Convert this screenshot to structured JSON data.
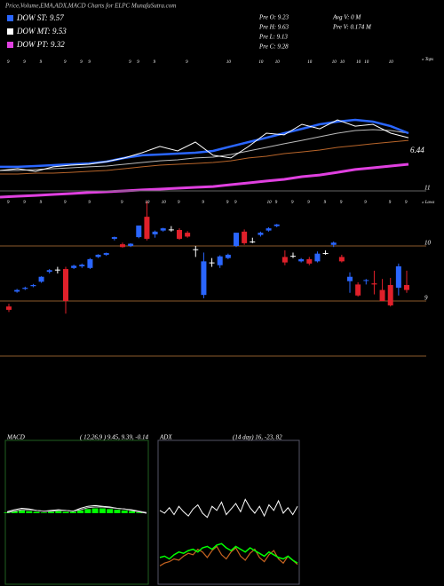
{
  "header": {
    "title": "Price,Volume,EMA,ADX,MACD Charts for ELPC MunafaSutra.com",
    "legend": [
      {
        "label": "DOW ST: 9.57",
        "color": "#2a66ff"
      },
      {
        "label": "DOW MT: 9.53",
        "color": "#ffffff"
      },
      {
        "label": "DOW PT: 9.32",
        "color": "#e040e0"
      }
    ],
    "stats": [
      "Pre  O: 9.23",
      "Pre  H: 9.63",
      "Pre  L: 9.13",
      "Pre  C: 9.28"
    ],
    "stats2": [
      "Avg V: 0  M",
      "Pre  V: 0.174  M"
    ]
  },
  "chart_data": [
    {
      "type": "line",
      "annotation": "6.44",
      "ylim": [
        0,
        100
      ],
      "series": [
        {
          "color": "#b8652a",
          "values": [
            22.3,
            22.3,
            23.1,
            23.1,
            23.8,
            24.6,
            25.4,
            26.9,
            28.5,
            30,
            30.8,
            31.5,
            32.3,
            33.8,
            36.2,
            37.7,
            40,
            41.5,
            43.1,
            45.4,
            46.9,
            48.5,
            50,
            51.5
          ]
        },
        {
          "color": "#bbbbbb",
          "values": [
            25.4,
            25.4,
            26.2,
            26.9,
            27.7,
            28.5,
            29.2,
            30.8,
            32.3,
            33.8,
            34.6,
            36.2,
            36.9,
            39.2,
            42.3,
            45.4,
            48.5,
            51.5,
            54.6,
            57.7,
            60,
            60.8,
            60,
            57.7
          ]
        },
        {
          "color": "#e040e0",
          "values": [
            2.3,
            3.1,
            3.8,
            4.6,
            5.4,
            6.2,
            6.9,
            7.7,
            8.5,
            9.2,
            10,
            10.8,
            11.5,
            13.1,
            14.6,
            16.2,
            17.7,
            20,
            21.5,
            23.8,
            26.2,
            27.7,
            29.2,
            30.8
          ]
        },
        {
          "color": "#2a66ff",
          "values": [
            28.5,
            28.5,
            29.2,
            30,
            30.8,
            31.5,
            33.1,
            36.2,
            38.5,
            39.2,
            40,
            40.8,
            42.3,
            46.2,
            50,
            53.8,
            57.7,
            61.5,
            65.4,
            67.7,
            69.2,
            67.7,
            63.8,
            57.7
          ]
        },
        {
          "color": "#ffffff",
          "values": [
            25.4,
            26.9,
            24.6,
            28.5,
            30,
            30.8,
            33.1,
            36.2,
            40.8,
            46.2,
            42.3,
            50,
            38.5,
            36.2,
            46.2,
            57.7,
            56.2,
            65.4,
            61.5,
            69.2,
            63.8,
            65.4,
            57.7,
            53.8
          ]
        }
      ]
    },
    {
      "type": "candlestick",
      "ylim": [
        8,
        11
      ],
      "yticks": [
        9,
        10,
        11
      ],
      "tops_label": "« Tops",
      "lows_label": "« Lows",
      "up_color": "#2a66ff",
      "down_color": "#e0202a",
      "flat_color": "#ffffff",
      "open": [
        8.9,
        9.17,
        9.22,
        9.27,
        9.35,
        9.53,
        9.57,
        9.58,
        9.6,
        9.63,
        9.6,
        9.8,
        9.84,
        10.13,
        10.03,
        10.0,
        10.16,
        10.53,
        10.21,
        10.28,
        10.3,
        10.29,
        10.24,
        9.94,
        9.11,
        9.7,
        9.65,
        9.78,
        10.0,
        10.26,
        10.08,
        10.2,
        10.28,
        10.36,
        9.8,
        9.82,
        9.72,
        9.76,
        9.72,
        9.87,
        10.02,
        9.8,
        9.36,
        9.3,
        9.37,
        9.32,
        9.2,
        9.29,
        9.24,
        9.29
      ],
      "high": [
        8.95,
        9.22,
        9.26,
        9.31,
        9.45,
        9.58,
        9.62,
        9.62,
        9.66,
        9.68,
        9.78,
        9.85,
        9.88,
        10.17,
        10.06,
        10.05,
        10.37,
        10.81,
        10.28,
        10.33,
        10.36,
        10.32,
        10.27,
        10.0,
        9.88,
        9.78,
        9.83,
        9.86,
        10.24,
        10.3,
        10.15,
        10.26,
        10.34,
        10.4,
        9.92,
        9.88,
        9.78,
        9.8,
        9.9,
        9.92,
        10.08,
        9.84,
        9.52,
        9.34,
        9.4,
        9.55,
        9.4,
        9.42,
        9.68,
        9.55
      ],
      "low": [
        8.8,
        9.15,
        9.2,
        9.25,
        9.33,
        9.5,
        9.5,
        8.77,
        9.58,
        9.6,
        9.58,
        9.78,
        9.82,
        10.1,
        9.97,
        9.98,
        10.14,
        10.1,
        10.15,
        10.26,
        10.26,
        10.11,
        10.15,
        9.8,
        9.05,
        9.62,
        9.6,
        9.76,
        9.98,
        10.02,
        10.05,
        10.17,
        10.26,
        10.34,
        9.65,
        9.78,
        9.7,
        9.65,
        9.7,
        9.84,
        9.98,
        9.7,
        9.15,
        9.08,
        9.3,
        9.12,
        9.0,
        8.9,
        9.1,
        9.15
      ],
      "close": [
        8.84,
        9.2,
        9.24,
        9.29,
        9.44,
        9.56,
        9.57,
        9.0,
        9.64,
        9.66,
        9.76,
        9.84,
        9.87,
        10.16,
        9.98,
        10.04,
        10.37,
        10.13,
        10.26,
        10.32,
        10.3,
        10.13,
        10.17,
        9.94,
        9.72,
        9.7,
        9.81,
        9.84,
        10.24,
        10.05,
        10.08,
        10.24,
        10.32,
        10.39,
        9.7,
        9.82,
        9.76,
        9.68,
        9.86,
        9.87,
        10.06,
        9.72,
        9.44,
        9.1,
        9.38,
        9.3,
        9.0,
        8.92,
        9.63,
        9.2
      ],
      "tops": [
        9,
        null,
        9,
        null,
        9,
        null,
        null,
        9,
        null,
        9,
        9,
        null,
        null,
        null,
        null,
        9,
        9,
        null,
        9,
        null,
        null,
        null,
        9,
        null,
        null,
        null,
        null,
        10,
        null,
        null,
        null,
        10,
        null,
        10,
        null,
        null,
        null,
        10,
        null,
        null,
        10,
        10,
        null,
        10,
        10,
        null,
        null,
        10,
        null,
        null
      ],
      "lows": [
        9,
        null,
        9,
        null,
        9,
        null,
        null,
        9,
        null,
        null,
        9,
        null,
        null,
        null,
        9,
        null,
        null,
        10,
        null,
        10,
        null,
        9,
        null,
        null,
        9,
        null,
        null,
        9,
        9,
        null,
        null,
        null,
        10,
        9,
        null,
        9,
        null,
        9,
        null,
        9,
        null,
        9,
        null,
        null,
        9,
        null,
        null,
        9,
        null,
        9
      ]
    },
    {
      "type": "line",
      "title": "MACD",
      "subtitle": "( 12,26,9 ) 9.45, 9.39, -0.14",
      "ylim": [
        -1,
        1
      ],
      "series": [
        {
          "style": "bar",
          "color": "#00ff00",
          "values": [
            0.01,
            0.03,
            0.04,
            0.03,
            0.02,
            0.01,
            0.02,
            0.03,
            0.02,
            0.02,
            0.04,
            0.06,
            0.07,
            0.07,
            0.06,
            0.05,
            0.04,
            0.03,
            0.01,
            0.0
          ]
        },
        {
          "color": "#ffffff",
          "values": [
            0.02,
            0.05,
            0.07,
            0.06,
            0.04,
            0.03,
            0.04,
            0.05,
            0.04,
            0.03,
            0.07,
            0.1,
            0.11,
            0.1,
            0.09,
            0.07,
            0.06,
            0.04,
            0.02,
            0.0
          ]
        },
        {
          "color": "#cccccc",
          "values": [
            0.01,
            0.03,
            0.05,
            0.05,
            0.04,
            0.03,
            0.03,
            0.04,
            0.04,
            0.03,
            0.05,
            0.08,
            0.09,
            0.09,
            0.08,
            0.07,
            0.06,
            0.05,
            0.03,
            0.01
          ]
        }
      ]
    },
    {
      "type": "line",
      "title": "ADX",
      "subtitle": "(14 day) 16, -23, 82",
      "ylim": [
        0,
        100
      ],
      "series": [
        {
          "color": "#ffffff",
          "values": [
            52,
            50,
            54,
            49,
            55,
            51,
            48,
            53,
            56,
            50,
            47,
            55,
            52,
            58,
            49,
            53,
            57,
            51,
            60,
            54,
            50,
            55,
            48,
            56,
            52,
            59,
            50,
            54,
            49,
            55
          ]
        },
        {
          "color": "#c86420",
          "values": [
            12,
            14,
            15,
            17,
            16,
            19,
            21,
            20,
            24,
            22,
            18,
            23,
            26,
            20,
            17,
            22,
            25,
            19,
            16,
            21,
            24,
            18,
            15,
            20,
            23,
            17,
            14,
            19,
            16,
            13
          ]
        },
        {
          "color": "#00ff00",
          "values": [
            18,
            19,
            17,
            20,
            22,
            21,
            23,
            24,
            22,
            25,
            26,
            24,
            27,
            28,
            25,
            23,
            26,
            24,
            22,
            25,
            23,
            21,
            19,
            22,
            20,
            18,
            17,
            19,
            16,
            14
          ]
        }
      ]
    }
  ]
}
